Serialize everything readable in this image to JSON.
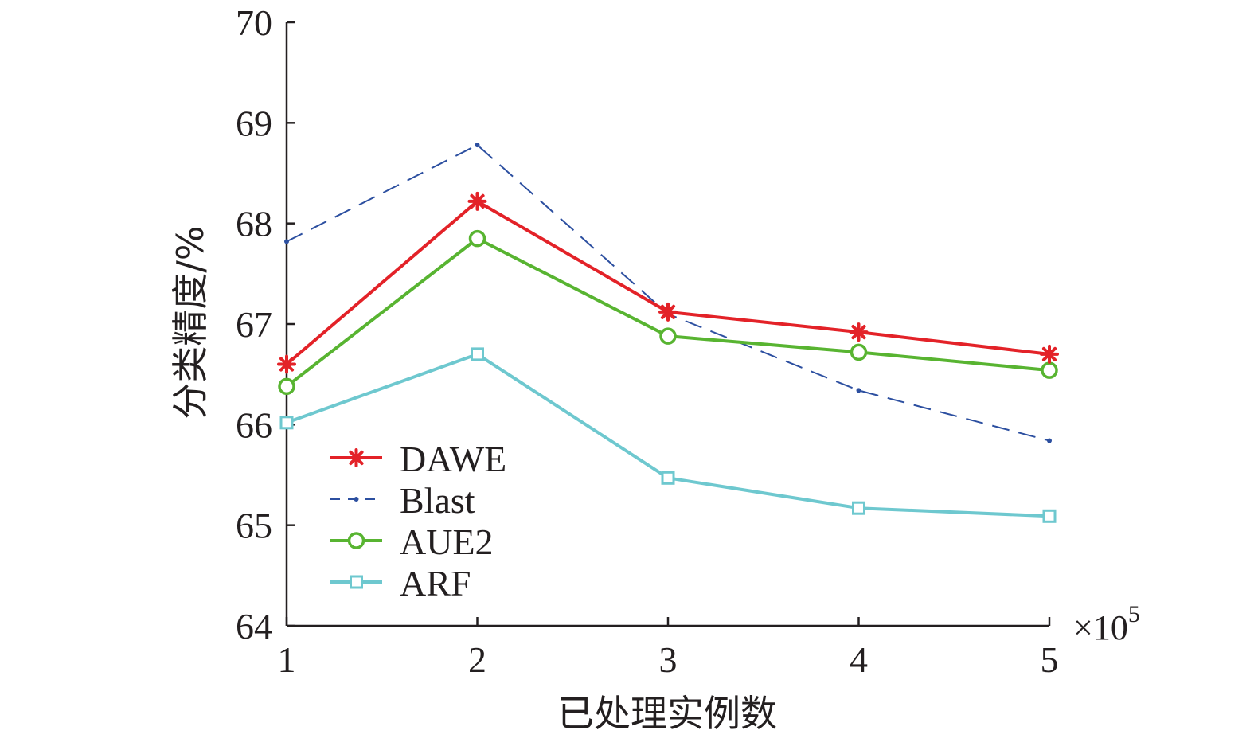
{
  "chart_data": {
    "type": "line",
    "xlabel": "已处理实例数",
    "ylabel": "分类精度/%",
    "x_multiplier_base": "×10",
    "x_multiplier_exp": "5",
    "x": [
      1,
      2,
      3,
      4,
      5
    ],
    "xticks": [
      "1",
      "2",
      "3",
      "4",
      "5"
    ],
    "yticks": [
      "64",
      "65",
      "66",
      "67",
      "68",
      "69",
      "70"
    ],
    "xlim": [
      1,
      5
    ],
    "ylim": [
      64,
      70
    ],
    "grid": false,
    "legend_position": "lower-left",
    "series": [
      {
        "name": "DAWE",
        "values": [
          66.6,
          68.22,
          67.12,
          66.92,
          66.7
        ],
        "color": "#e32228",
        "marker": "asterisk",
        "line": "solid"
      },
      {
        "name": "Blast",
        "values": [
          67.82,
          68.78,
          67.1,
          66.34,
          65.84
        ],
        "color": "#2c4fa0",
        "marker": "dot",
        "line": "dashed"
      },
      {
        "name": "AUE2",
        "values": [
          66.38,
          67.85,
          66.88,
          66.72,
          66.54
        ],
        "color": "#58b431",
        "marker": "circle",
        "line": "solid"
      },
      {
        "name": "ARF",
        "values": [
          66.02,
          66.7,
          65.47,
          65.17,
          65.09
        ],
        "color": "#6ec8cf",
        "marker": "square",
        "line": "solid"
      }
    ]
  }
}
